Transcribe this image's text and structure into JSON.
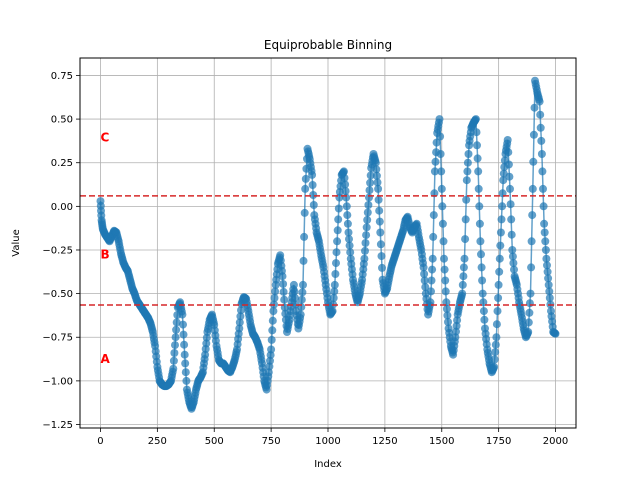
{
  "chart_data": {
    "type": "scatter",
    "title": "Equiprobable Binning",
    "xlabel": "Index",
    "ylabel": "Value",
    "xlim": [
      -90,
      2090
    ],
    "ylim": [
      -1.27,
      0.85
    ],
    "xticks": [
      0,
      250,
      500,
      750,
      1000,
      1250,
      1500,
      1750,
      2000
    ],
    "yticks": [
      -1.25,
      -1.0,
      -0.75,
      -0.5,
      -0.25,
      0.0,
      0.25,
      0.5,
      0.75
    ],
    "ytick_labels": [
      "−1.25",
      "−1.00",
      "−0.75",
      "−0.50",
      "−0.25",
      "0.00",
      "0.25",
      "0.50",
      "0.75"
    ],
    "grid": true,
    "series_color": "#1f77b4",
    "thresholds": [
      0.06,
      -0.565
    ],
    "threshold_color": "#d62728",
    "bin_labels": [
      {
        "text": "C",
        "x": 0,
        "y": 0.4
      },
      {
        "text": "B",
        "x": 0,
        "y": -0.27
      },
      {
        "text": "A",
        "x": 0,
        "y": -0.87
      }
    ],
    "points": [
      [
        0,
        0.03
      ],
      [
        5,
        -0.08
      ],
      [
        10,
        -0.13
      ],
      [
        20,
        -0.16
      ],
      [
        30,
        -0.18
      ],
      [
        40,
        -0.2
      ],
      [
        50,
        -0.17
      ],
      [
        60,
        -0.14
      ],
      [
        70,
        -0.15
      ],
      [
        80,
        -0.2
      ],
      [
        90,
        -0.27
      ],
      [
        100,
        -0.32
      ],
      [
        110,
        -0.35
      ],
      [
        120,
        -0.37
      ],
      [
        130,
        -0.42
      ],
      [
        140,
        -0.47
      ],
      [
        150,
        -0.5
      ],
      [
        160,
        -0.54
      ],
      [
        170,
        -0.56
      ],
      [
        180,
        -0.58
      ],
      [
        190,
        -0.6
      ],
      [
        200,
        -0.62
      ],
      [
        210,
        -0.64
      ],
      [
        220,
        -0.67
      ],
      [
        230,
        -0.72
      ],
      [
        240,
        -0.8
      ],
      [
        250,
        -0.92
      ],
      [
        260,
        -1.0
      ],
      [
        270,
        -1.02
      ],
      [
        280,
        -1.03
      ],
      [
        290,
        -1.03
      ],
      [
        300,
        -1.02
      ],
      [
        310,
        -1.0
      ],
      [
        320,
        -0.93
      ],
      [
        330,
        -0.75
      ],
      [
        340,
        -0.58
      ],
      [
        350,
        -0.55
      ],
      [
        360,
        -0.62
      ],
      [
        370,
        -0.85
      ],
      [
        380,
        -1.05
      ],
      [
        390,
        -1.12
      ],
      [
        400,
        -1.16
      ],
      [
        410,
        -1.12
      ],
      [
        420,
        -1.05
      ],
      [
        430,
        -1.0
      ],
      [
        440,
        -0.98
      ],
      [
        450,
        -0.95
      ],
      [
        460,
        -0.85
      ],
      [
        470,
        -0.72
      ],
      [
        480,
        -0.65
      ],
      [
        490,
        -0.62
      ],
      [
        500,
        -0.68
      ],
      [
        510,
        -0.8
      ],
      [
        520,
        -0.88
      ],
      [
        530,
        -0.9
      ],
      [
        540,
        -0.9
      ],
      [
        550,
        -0.92
      ],
      [
        560,
        -0.94
      ],
      [
        570,
        -0.95
      ],
      [
        580,
        -0.92
      ],
      [
        590,
        -0.88
      ],
      [
        600,
        -0.82
      ],
      [
        610,
        -0.7
      ],
      [
        620,
        -0.56
      ],
      [
        630,
        -0.52
      ],
      [
        640,
        -0.53
      ],
      [
        650,
        -0.6
      ],
      [
        660,
        -0.68
      ],
      [
        670,
        -0.73
      ],
      [
        680,
        -0.75
      ],
      [
        690,
        -0.78
      ],
      [
        700,
        -0.82
      ],
      [
        710,
        -0.9
      ],
      [
        720,
        -1.0
      ],
      [
        730,
        -1.05
      ],
      [
        740,
        -0.95
      ],
      [
        750,
        -0.82
      ],
      [
        760,
        -0.6
      ],
      [
        770,
        -0.45
      ],
      [
        780,
        -0.33
      ],
      [
        790,
        -0.28
      ],
      [
        800,
        -0.4
      ],
      [
        810,
        -0.58
      ],
      [
        820,
        -0.72
      ],
      [
        830,
        -0.65
      ],
      [
        840,
        -0.55
      ],
      [
        850,
        -0.45
      ],
      [
        860,
        -0.6
      ],
      [
        870,
        -0.7
      ],
      [
        880,
        -0.62
      ],
      [
        890,
        -0.45
      ],
      [
        900,
        0.1
      ],
      [
        910,
        0.33
      ],
      [
        920,
        0.27
      ],
      [
        930,
        0.18
      ],
      [
        940,
        -0.05
      ],
      [
        950,
        -0.15
      ],
      [
        960,
        -0.2
      ],
      [
        970,
        -0.28
      ],
      [
        980,
        -0.35
      ],
      [
        990,
        -0.45
      ],
      [
        1000,
        -0.55
      ],
      [
        1010,
        -0.62
      ],
      [
        1020,
        -0.6
      ],
      [
        1030,
        -0.45
      ],
      [
        1040,
        -0.2
      ],
      [
        1050,
        0.05
      ],
      [
        1060,
        0.18
      ],
      [
        1070,
        0.2
      ],
      [
        1080,
        0.05
      ],
      [
        1090,
        -0.15
      ],
      [
        1100,
        -0.3
      ],
      [
        1110,
        -0.42
      ],
      [
        1120,
        -0.5
      ],
      [
        1130,
        -0.55
      ],
      [
        1140,
        -0.5
      ],
      [
        1150,
        -0.42
      ],
      [
        1160,
        -0.3
      ],
      [
        1170,
        -0.12
      ],
      [
        1180,
        0.05
      ],
      [
        1190,
        0.22
      ],
      [
        1200,
        0.3
      ],
      [
        1210,
        0.25
      ],
      [
        1220,
        0.1
      ],
      [
        1230,
        -0.15
      ],
      [
        1240,
        -0.42
      ],
      [
        1250,
        -0.5
      ],
      [
        1260,
        -0.47
      ],
      [
        1270,
        -0.4
      ],
      [
        1280,
        -0.34
      ],
      [
        1290,
        -0.3
      ],
      [
        1300,
        -0.26
      ],
      [
        1310,
        -0.22
      ],
      [
        1320,
        -0.18
      ],
      [
        1330,
        -0.14
      ],
      [
        1340,
        -0.08
      ],
      [
        1350,
        -0.06
      ],
      [
        1360,
        -0.12
      ],
      [
        1370,
        -0.15
      ],
      [
        1380,
        -0.12
      ],
      [
        1390,
        -0.1
      ],
      [
        1400,
        -0.18
      ],
      [
        1410,
        -0.25
      ],
      [
        1420,
        -0.35
      ],
      [
        1430,
        -0.5
      ],
      [
        1440,
        -0.62
      ],
      [
        1450,
        -0.55
      ],
      [
        1460,
        -0.3
      ],
      [
        1470,
        0.2
      ],
      [
        1480,
        0.42
      ],
      [
        1490,
        0.5
      ],
      [
        1500,
        0.1
      ],
      [
        1510,
        -0.3
      ],
      [
        1520,
        -0.55
      ],
      [
        1530,
        -0.7
      ],
      [
        1540,
        -0.8
      ],
      [
        1550,
        -0.85
      ],
      [
        1560,
        -0.75
      ],
      [
        1570,
        -0.62
      ],
      [
        1580,
        -0.55
      ],
      [
        1590,
        -0.5
      ],
      [
        1600,
        -0.3
      ],
      [
        1610,
        0.15
      ],
      [
        1620,
        0.35
      ],
      [
        1630,
        0.45
      ],
      [
        1640,
        0.48
      ],
      [
        1650,
        0.5
      ],
      [
        1660,
        0.2
      ],
      [
        1670,
        -0.2
      ],
      [
        1680,
        -0.5
      ],
      [
        1690,
        -0.7
      ],
      [
        1700,
        -0.82
      ],
      [
        1710,
        -0.9
      ],
      [
        1720,
        -0.95
      ],
      [
        1730,
        -0.92
      ],
      [
        1740,
        -0.75
      ],
      [
        1750,
        -0.45
      ],
      [
        1760,
        -0.15
      ],
      [
        1770,
        0.15
      ],
      [
        1780,
        0.3
      ],
      [
        1790,
        0.38
      ],
      [
        1800,
        0.1
      ],
      [
        1810,
        -0.25
      ],
      [
        1820,
        -0.4
      ],
      [
        1830,
        -0.45
      ],
      [
        1840,
        -0.55
      ],
      [
        1850,
        -0.62
      ],
      [
        1860,
        -0.7
      ],
      [
        1870,
        -0.75
      ],
      [
        1880,
        -0.72
      ],
      [
        1890,
        -0.5
      ],
      [
        1900,
        0.1
      ],
      [
        1910,
        0.72
      ],
      [
        1920,
        0.65
      ],
      [
        1930,
        0.6
      ],
      [
        1940,
        0.3
      ],
      [
        1950,
        -0.1
      ],
      [
        1960,
        -0.3
      ],
      [
        1970,
        -0.45
      ],
      [
        1980,
        -0.6
      ],
      [
        1990,
        -0.72
      ],
      [
        2000,
        -0.73
      ]
    ]
  }
}
